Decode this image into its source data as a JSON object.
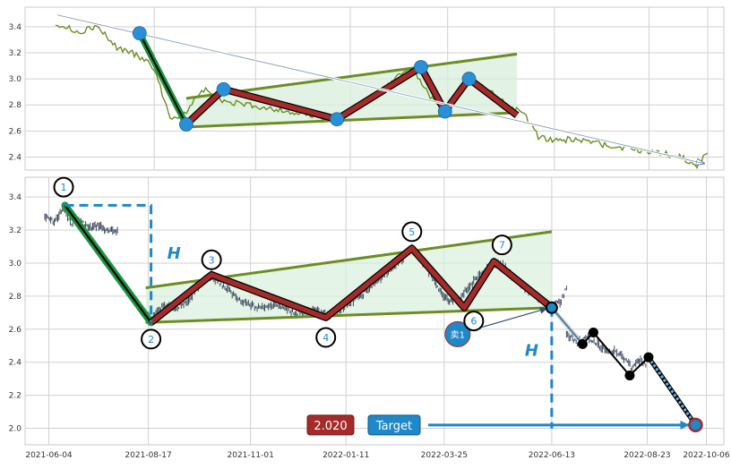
{
  "chart_data": [
    {
      "type": "line",
      "panel": "overview",
      "y_ticks": [
        2.4,
        2.6,
        2.8,
        3.0,
        3.2,
        3.4
      ],
      "ylim": [
        2.3,
        3.55
      ],
      "x_domain": [
        "2021-06-04",
        "2022-10-06"
      ],
      "grid": true,
      "colors": {
        "price": "#6b8e23",
        "pattern": "#a52a2a",
        "trend": "#6b8e23",
        "marker": "#2a8fd4",
        "flag_pole": "#1a9641"
      },
      "price": [
        [
          "2021-06-04",
          3.43
        ],
        [
          "2021-06-20",
          3.36
        ],
        [
          "2021-07-05",
          3.4
        ],
        [
          "2021-07-20",
          3.24
        ],
        [
          "2021-08-05",
          3.18
        ],
        [
          "2021-08-17",
          3.08
        ],
        [
          "2021-08-29",
          2.7
        ],
        [
          "2021-09-10",
          2.74
        ],
        [
          "2021-09-23",
          2.92
        ],
        [
          "2021-10-07",
          2.83
        ],
        [
          "2021-10-25",
          2.8
        ],
        [
          "2021-11-15",
          2.77
        ],
        [
          "2021-12-09",
          2.72
        ],
        [
          "2022-01-02",
          2.69
        ],
        [
          "2022-01-25",
          2.83
        ],
        [
          "2022-02-14",
          3.0
        ],
        [
          "2022-02-26",
          3.09
        ],
        [
          "2022-03-12",
          2.86
        ],
        [
          "2022-03-26",
          2.75
        ],
        [
          "2022-04-10",
          3.0
        ],
        [
          "2022-04-26",
          2.9
        ],
        [
          "2022-05-10",
          2.78
        ],
        [
          "2022-05-20",
          2.74
        ],
        [
          "2022-06-01",
          2.56
        ],
        [
          "2022-06-13",
          2.52
        ],
        [
          "2022-06-26",
          2.54
        ],
        [
          "2022-07-12",
          2.51
        ],
        [
          "2022-07-28",
          2.48
        ],
        [
          "2022-08-15",
          2.45
        ],
        [
          "2022-08-30",
          2.44
        ],
        [
          "2022-09-15",
          2.4
        ],
        [
          "2022-09-28",
          2.34
        ],
        [
          "2022-10-06",
          2.43
        ]
      ],
      "pattern_points": [
        [
          "2021-08-06",
          3.35
        ],
        [
          "2021-09-10",
          2.65
        ],
        [
          "2021-10-08",
          2.92
        ],
        [
          "2022-01-01",
          2.69
        ],
        [
          "2022-03-05",
          3.09
        ],
        [
          "2022-03-23",
          2.75
        ],
        [
          "2022-04-10",
          3.0
        ],
        [
          "2022-05-16",
          2.72
        ]
      ],
      "markers": [
        [
          "2021-08-06",
          3.35
        ],
        [
          "2021-09-10",
          2.65
        ],
        [
          "2021-10-08",
          2.92
        ],
        [
          "2022-01-01",
          2.69
        ],
        [
          "2022-03-05",
          3.09
        ],
        [
          "2022-03-23",
          2.75
        ],
        [
          "2022-04-10",
          3.0
        ]
      ],
      "upper_trend": [
        [
          "2021-09-10",
          2.85
        ],
        [
          "2022-05-16",
          3.19
        ]
      ],
      "lower_trend": [
        [
          "2021-09-10",
          2.63
        ],
        [
          "2022-05-16",
          2.74
        ]
      ],
      "arrow": [
        [
          "2021-06-04",
          3.49
        ],
        [
          "2022-09-28",
          2.35
        ]
      ]
    },
    {
      "type": "line",
      "panel": "detail",
      "y_ticks": [
        2.0,
        2.2,
        2.4,
        2.6,
        2.8,
        3.0,
        3.2,
        3.4
      ],
      "ylim": [
        1.9,
        3.52
      ],
      "x_ticks": [
        "2021-06-04",
        "2021-08-17",
        "2021-11-01",
        "2022-01-11",
        "2022-03-25",
        "2022-06-13",
        "2022-08-23",
        "2022-10-06"
      ],
      "x_domain": [
        "2021-05-20",
        "2022-10-15"
      ],
      "grid": true,
      "colors": {
        "price": "#1f2a44",
        "pattern": "#a52a2a",
        "trend": "#6b8e23",
        "dashed": "#1e88c8",
        "pole": "#1a9641",
        "label_text": "#1e88c8",
        "projection": "#000000"
      },
      "pattern_points": [
        [
          "2021-06-16",
          3.35
        ],
        [
          "2021-08-19",
          2.64
        ],
        [
          "2021-10-03",
          2.93
        ],
        [
          "2021-12-27",
          2.67
        ],
        [
          "2022-03-01",
          3.09
        ],
        [
          "2022-04-09",
          2.73
        ],
        [
          "2022-05-01",
          3.01
        ],
        [
          "2022-06-13",
          2.73
        ]
      ],
      "point_labels": [
        {
          "label": "1",
          "date": "2021-06-15",
          "price": 3.46
        },
        {
          "label": "2",
          "date": "2021-08-19",
          "price": 2.54
        },
        {
          "label": "3",
          "date": "2021-10-03",
          "price": 3.02
        },
        {
          "label": "4",
          "date": "2021-12-27",
          "price": 2.55
        },
        {
          "label": "5",
          "date": "2022-03-01",
          "price": 3.19
        },
        {
          "label": "6",
          "date": "2022-04-16",
          "price": 2.65
        },
        {
          "label": "7",
          "date": "2022-05-07",
          "price": 3.11
        }
      ],
      "upper_trend": [
        [
          "2021-08-15",
          2.85
        ],
        [
          "2022-06-13",
          3.19
        ]
      ],
      "lower_trend": [
        [
          "2021-08-15",
          2.64
        ],
        [
          "2022-06-13",
          2.73
        ]
      ],
      "h_height": {
        "label": "H",
        "top": 3.35,
        "bottom": 2.64,
        "start": "2021-06-16",
        "at": "2021-08-19"
      },
      "h_projection": {
        "label": "H",
        "top": 2.73,
        "bottom": 2.02,
        "at": "2022-06-13"
      },
      "sell_signal": {
        "label": "卖1",
        "date": "2022-04-04",
        "price": 2.57
      },
      "forecast": [
        [
          "2022-06-13",
          2.73
        ],
        [
          "2022-07-06",
          2.51
        ],
        [
          "2022-07-14",
          2.58
        ],
        [
          "2022-08-10",
          2.32
        ],
        [
          "2022-08-24",
          2.43
        ],
        [
          "2022-09-28",
          2.02
        ]
      ],
      "target": {
        "value_label": "2.020",
        "label": "Target",
        "value": 2.02,
        "date": "2022-09-28"
      },
      "price_segments": [
        [
          [
            "2021-06-01",
            3.28
          ],
          [
            "2021-06-08",
            3.25
          ],
          [
            "2021-06-15",
            3.33
          ],
          [
            "2021-06-20",
            3.24
          ],
          [
            "2021-06-27",
            3.26
          ],
          [
            "2021-07-04",
            3.21
          ],
          [
            "2021-07-11",
            3.23
          ],
          [
            "2021-07-18",
            3.19
          ],
          [
            "2021-07-25",
            3.2
          ]
        ],
        [
          [
            "2021-08-10",
            2.73
          ],
          [
            "2021-08-19",
            2.66
          ],
          [
            "2021-08-28",
            2.74
          ],
          [
            "2021-09-05",
            2.72
          ],
          [
            "2021-09-15",
            2.77
          ],
          [
            "2021-09-25",
            2.88
          ],
          [
            "2021-10-03",
            2.93
          ],
          [
            "2021-10-12",
            2.86
          ],
          [
            "2021-10-22",
            2.79
          ],
          [
            "2021-11-05",
            2.73
          ],
          [
            "2021-11-20",
            2.75
          ],
          [
            "2021-12-05",
            2.7
          ],
          [
            "2021-12-20",
            2.71
          ],
          [
            "2021-12-30",
            2.67
          ],
          [
            "2022-01-10",
            2.74
          ],
          [
            "2022-01-22",
            2.8
          ],
          [
            "2022-02-05",
            2.9
          ],
          [
            "2022-02-18",
            3.0
          ],
          [
            "2022-03-01",
            3.09
          ],
          [
            "2022-03-10",
            3.0
          ],
          [
            "2022-03-20",
            2.86
          ],
          [
            "2022-03-28",
            2.77
          ],
          [
            "2022-04-05",
            2.79
          ],
          [
            "2022-04-15",
            2.88
          ],
          [
            "2022-04-25",
            2.96
          ],
          [
            "2022-05-05",
            3.0
          ],
          [
            "2022-05-15",
            2.92
          ],
          [
            "2022-05-25",
            2.84
          ],
          [
            "2022-06-05",
            2.78
          ],
          [
            "2022-06-13",
            2.74
          ],
          [
            "2022-06-20",
            2.77
          ],
          [
            "2022-06-24",
            2.85
          ]
        ],
        [
          [
            "2022-06-24",
            2.57
          ],
          [
            "2022-07-02",
            2.52
          ],
          [
            "2022-07-10",
            2.55
          ],
          [
            "2022-07-18",
            2.5
          ],
          [
            "2022-07-26",
            2.47
          ],
          [
            "2022-08-03",
            2.45
          ],
          [
            "2022-08-11",
            2.37
          ],
          [
            "2022-08-18",
            2.41
          ],
          [
            "2022-08-22",
            2.38
          ]
        ]
      ]
    }
  ]
}
